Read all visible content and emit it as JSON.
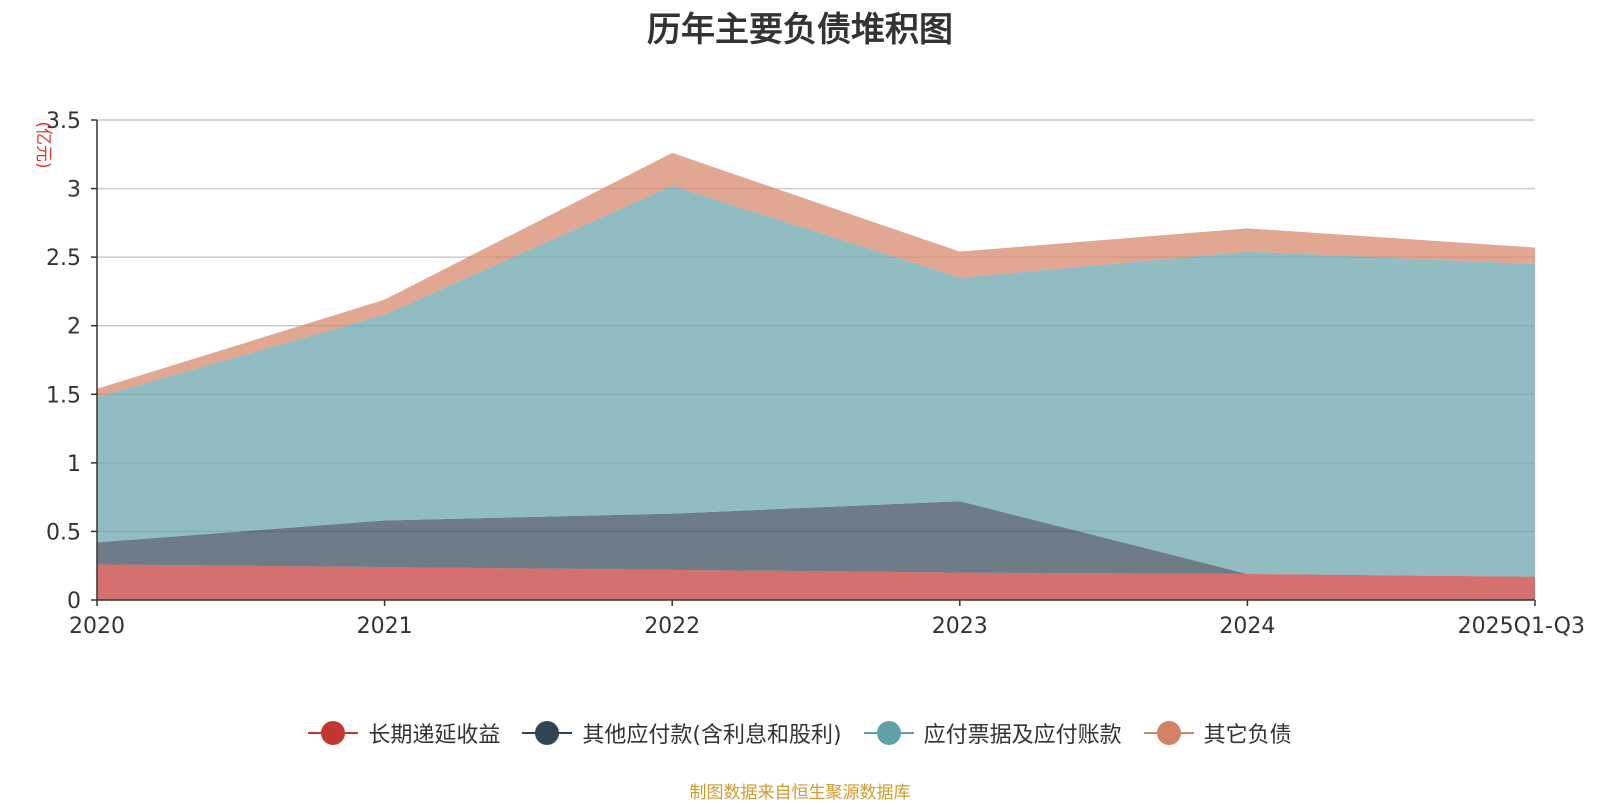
{
  "chart_data": {
    "type": "area",
    "stacked": true,
    "title": "历年主要负债堆积图",
    "ylabel": "(亿元)",
    "categories": [
      "2020",
      "2021",
      "2022",
      "2023",
      "2024",
      "2025Q1-Q3"
    ],
    "ylim": [
      0,
      3.5
    ],
    "yticks": [
      "0",
      "0.5",
      "1",
      "1.5",
      "2",
      "2.5",
      "3",
      "3.5"
    ],
    "grid": true,
    "legend_position": "bottom",
    "series": [
      {
        "name": "长期递延收益",
        "color": "#c23531",
        "values": [
          0.26,
          0.24,
          0.22,
          0.2,
          0.19,
          0.17
        ]
      },
      {
        "name": "其他应付款(含利息和股利)",
        "color": "#2f4554",
        "values": [
          0.16,
          0.34,
          0.41,
          0.52,
          0.0,
          0.0
        ]
      },
      {
        "name": "应付票据及应付账款",
        "color": "#61a0a8",
        "values": [
          1.06,
          1.5,
          2.39,
          1.63,
          2.35,
          2.28
        ]
      },
      {
        "name": "其它负债",
        "color": "#d48265",
        "values": [
          0.06,
          0.11,
          0.24,
          0.19,
          0.17,
          0.12
        ]
      }
    ]
  },
  "source_note": "制图数据来自恒生聚源数据库"
}
